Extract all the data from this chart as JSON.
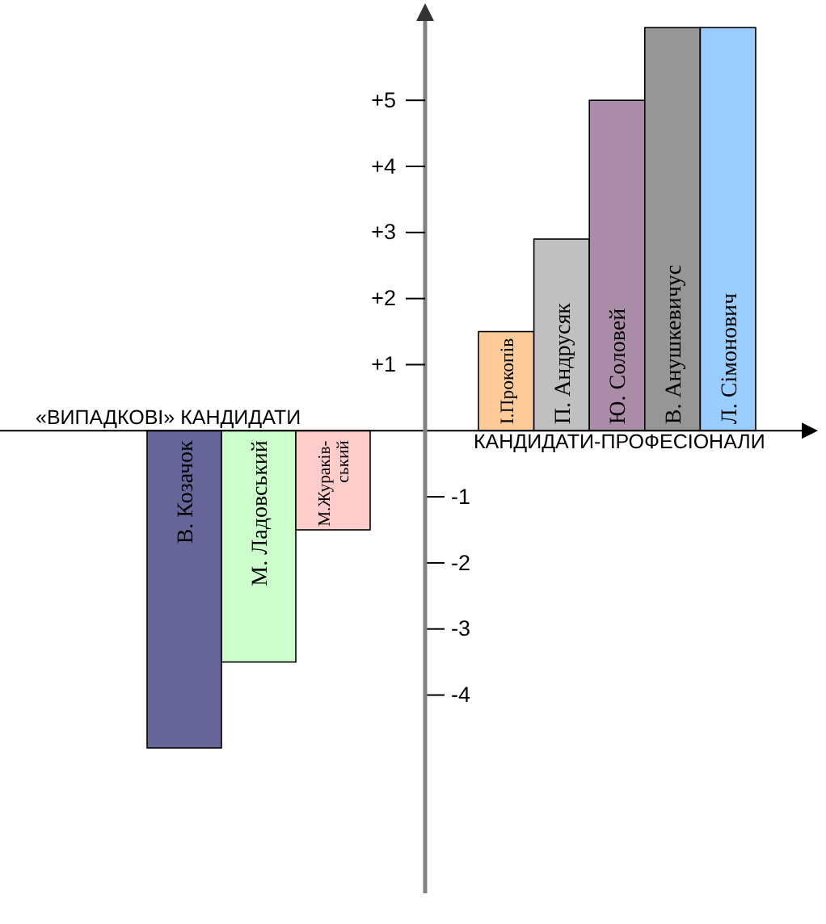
{
  "chart_data": [
    {
      "type": "bar",
      "xlabel": "«ВИПАДКОВІ» КАНДИДАТИ",
      "categories": [
        "В. Козачок",
        "М. Ладовський",
        "М.Жураків-ський"
      ],
      "values": [
        -4.8,
        -3.5,
        -1.5
      ],
      "colors": [
        "#666699",
        "#ccffcc",
        "#ffcccc"
      ],
      "ylim": [
        -7,
        6.2
      ],
      "yticks": [
        -4,
        -3,
        -2,
        -1
      ]
    },
    {
      "type": "bar",
      "xlabel": "КАНДИДАТИ-ПРОФЕСІОНАЛИ",
      "categories": [
        "І.Прокопів",
        "П. Андрусяк",
        "Ю. Соловей",
        "В. Анушкевичус",
        "Л. Сімонович"
      ],
      "values": [
        1.5,
        2.9,
        5,
        6.1,
        6.1
      ],
      "colors": [
        "#ffcc99",
        "#c0c0c0",
        "#aa8ca8",
        "#969696",
        "#99ccff"
      ],
      "ylim": [
        -7,
        6.2
      ],
      "yticks": [
        {
          "value": 1,
          "label": "+1"
        },
        {
          "value": 2,
          "label": "+2"
        },
        {
          "value": 3,
          "label": "+3"
        },
        {
          "value": 4,
          "label": "+4"
        },
        {
          "value": 5,
          "label": "+5"
        }
      ]
    }
  ]
}
